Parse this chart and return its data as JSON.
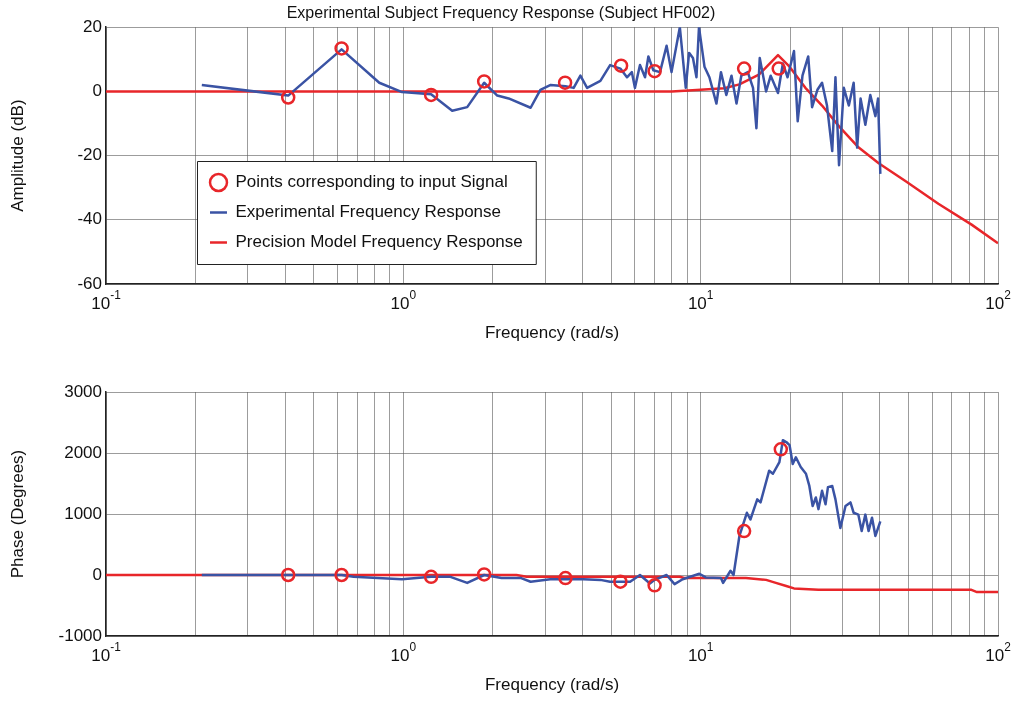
{
  "chart_data": [
    {
      "type": "line",
      "title": "Experimental Subject Frequency Response (Subject HF002)",
      "xlabel": "Frequency (rad/s)",
      "ylabel": "Amplitude (dB)",
      "log": "x",
      "grid": true,
      "legend": "bottom left",
      "xlim": [
        0.1,
        100
      ],
      "ylim": [
        -60,
        20
      ],
      "yticks": [
        -60,
        -40,
        -20,
        0,
        20
      ],
      "xticks": [
        {
          "value": 0.1,
          "label": "10$^{-1}$"
        },
        {
          "value": 0.2,
          "label": null
        },
        {
          "value": 0.3,
          "label": null
        },
        {
          "value": 0.4,
          "label": null
        },
        {
          "value": 0.5,
          "label": null
        },
        {
          "value": 0.6,
          "label": null
        },
        {
          "value": 0.7,
          "label": null
        },
        {
          "value": 0.8,
          "label": null
        },
        {
          "value": 0.9,
          "label": null
        },
        {
          "value": 1,
          "label": "10$^{0}$"
        },
        {
          "value": 2,
          "label": null
        },
        {
          "value": 3,
          "label": null
        },
        {
          "value": 4,
          "label": null
        },
        {
          "value": 5,
          "label": null
        },
        {
          "value": 6,
          "label": null
        },
        {
          "value": 7,
          "label": null
        },
        {
          "value": 8,
          "label": null
        },
        {
          "value": 9,
          "label": null
        },
        {
          "value": 10,
          "label": "10$^{1}$"
        },
        {
          "value": 20,
          "label": null
        },
        {
          "value": 30,
          "label": null
        },
        {
          "value": 40,
          "label": null
        },
        {
          "value": 50,
          "label": null
        },
        {
          "value": 60,
          "label": null
        },
        {
          "value": 70,
          "label": null
        },
        {
          "value": 80,
          "label": null
        },
        {
          "value": 90,
          "label": null
        },
        {
          "value": 100,
          "label": "10$^{2}$"
        }
      ],
      "series": [
        {
          "name": "Points corresponding to input Signal",
          "type": "scatter",
          "marker": "circle",
          "color": "#e8262a",
          "x": [
            0.41,
            0.62,
            1.24,
            1.87,
            3.5,
            5.4,
            7.0,
            14.0,
            18.3
          ],
          "values": [
            -1.9,
            13.4,
            -1.1,
            3.1,
            2.7,
            8.0,
            6.3,
            7.1,
            7.1
          ]
        },
        {
          "name": "Experimental Frequency Response",
          "marker": "none",
          "color": "#3a53a4",
          "x": [
            0.21,
            0.41,
            0.62,
            0.83,
            0.99,
            1.24,
            1.46,
            1.64,
            1.87,
            2.07,
            2.26,
            2.68,
            2.89,
            3.13,
            3.51,
            3.74,
            3.94,
            4.15,
            4.6,
            4.96,
            5.37,
            5.65,
            5.87,
            6.01,
            6.25,
            6.5,
            6.67,
            6.93,
            7.3,
            7.68,
            7.98,
            8.51,
            8.91,
            9.14,
            9.42,
            9.68,
            9.87,
            10.3,
            10.7,
            11.3,
            11.7,
            12.2,
            12.7,
            13.2,
            13.7,
            14.4,
            15.0,
            15.4,
            15.8,
            16.6,
            17.2,
            18.2,
            18.9,
            19.6,
            20.6,
            21.2,
            22.0,
            23.0,
            23.7,
            24.7,
            25.6,
            26.6,
            27.7,
            28.4,
            29.2,
            30.3,
            31.5,
            32.7,
            33.6,
            34.5,
            35.8,
            37.2,
            38.7,
            39.5,
            40.2
          ],
          "values": [
            2.0,
            -1.3,
            13.1,
            2.7,
            -0.2,
            -0.9,
            -6.0,
            -4.9,
            2.7,
            -1.3,
            -2.2,
            -5.1,
            0.5,
            2.0,
            1.6,
            1.1,
            4.9,
            1.1,
            3.3,
            8.2,
            7.1,
            4.4,
            6.0,
            1.1,
            8.2,
            4.4,
            10.9,
            6.6,
            6.0,
            14.2,
            6.0,
            20,
            1.1,
            12.0,
            10.4,
            4.4,
            20,
            7.7,
            4.4,
            -3.8,
            6.0,
            -1.1,
            4.9,
            -3.8,
            4.9,
            6.0,
            1.1,
            -11.5,
            10.4,
            0,
            4.9,
            -0.5,
            8.7,
            4.4,
            12.6,
            -9.3,
            4.9,
            10.9,
            -4.9,
            0.5,
            2.7,
            -4.4,
            -18.6,
            4.4,
            -23.0,
            1.1,
            -4.4,
            2.7,
            -17.5,
            -2.2,
            -10.4,
            -1.1,
            -7.7,
            -2.2,
            -25.7
          ]
        },
        {
          "name": "Precision Model Frequency Response",
          "marker": "none",
          "color": "#e8262a",
          "x": [
            0.1,
            8,
            10,
            12,
            13.5,
            15.7,
            18.2,
            19.9,
            22.5,
            25.6,
            29.2,
            34,
            39.7,
            48.8,
            63,
            81.5,
            100
          ],
          "values": [
            0,
            0,
            0.5,
            1,
            2.2,
            5.2,
            11.3,
            7.7,
            1.1,
            -4.4,
            -10.9,
            -17.5,
            -22.4,
            -27.9,
            -35,
            -41.5,
            -47.3
          ]
        }
      ]
    },
    {
      "type": "line",
      "xlabel": "Frequency (rad/s)",
      "ylabel": "Phase (Degrees)",
      "log": "x",
      "grid": true,
      "xlim": [
        0.1,
        100
      ],
      "ylim": [
        -1000,
        3000
      ],
      "yticks": [
        -1000,
        0,
        1000,
        2000,
        3000
      ],
      "xticks": [
        {
          "value": 0.1,
          "label": "10$^{-1}$"
        },
        {
          "value": 0.2,
          "label": null
        },
        {
          "value": 0.3,
          "label": null
        },
        {
          "value": 0.4,
          "label": null
        },
        {
          "value": 0.5,
          "label": null
        },
        {
          "value": 0.6,
          "label": null
        },
        {
          "value": 0.7,
          "label": null
        },
        {
          "value": 0.8,
          "label": null
        },
        {
          "value": 0.9,
          "label": null
        },
        {
          "value": 1,
          "label": "10$^{0}$"
        },
        {
          "value": 2,
          "label": null
        },
        {
          "value": 3,
          "label": null
        },
        {
          "value": 4,
          "label": null
        },
        {
          "value": 5,
          "label": null
        },
        {
          "value": 6,
          "label": null
        },
        {
          "value": 7,
          "label": null
        },
        {
          "value": 8,
          "label": null
        },
        {
          "value": 9,
          "label": null
        },
        {
          "value": 10,
          "label": "10$^{1}$"
        },
        {
          "value": 20,
          "label": null
        },
        {
          "value": 30,
          "label": null
        },
        {
          "value": 40,
          "label": null
        },
        {
          "value": 50,
          "label": null
        },
        {
          "value": 60,
          "label": null
        },
        {
          "value": 70,
          "label": null
        },
        {
          "value": 80,
          "label": null
        },
        {
          "value": 90,
          "label": null
        },
        {
          "value": 100,
          "label": "10$^{2}$"
        }
      ],
      "series": [
        {
          "marker": "none",
          "color": "#3a53a4",
          "x": [
            0.21,
            0.41,
            0.62,
            0.68,
            0.99,
            1.24,
            1.44,
            1.64,
            1.87,
            2.14,
            2.49,
            2.68,
            3.12,
            3.51,
            4.04,
            4.6,
            4.96,
            5.37,
            5.79,
            6.25,
            6.75,
            7.0,
            7.68,
            8.17,
            8.7,
            9.9,
            10.4,
            11.7,
            11.9,
            12.6,
            12.9,
            13.5,
            14.3,
            14.7,
            15.5,
            15.9,
            17.0,
            17.5,
            18.4,
            18.9,
            19.4,
            19.9,
            20.4,
            20.9,
            21.7,
            22.6,
            23.2,
            23.8,
            24.4,
            24.9,
            25.6,
            26.3,
            26.8,
            27.7,
            28.4,
            29.5,
            30.7,
            31.9,
            32.7,
            33.9,
            34.8,
            35.8,
            36.7,
            37.7,
            38.7,
            40.2
          ],
          "values": [
            0,
            0,
            0,
            -30,
            -70,
            -30,
            -30,
            -130,
            0,
            -50,
            -50,
            -110,
            -70,
            -70,
            -70,
            -80,
            -110,
            -110,
            -110,
            0,
            -140,
            -80,
            0,
            -150,
            -70,
            20,
            -40,
            -50,
            -130,
            70,
            0,
            640,
            1020,
            910,
            1240,
            1190,
            1710,
            1660,
            1850,
            2210,
            2180,
            2130,
            1820,
            1930,
            1770,
            1660,
            1460,
            1130,
            1270,
            1080,
            1380,
            1160,
            1440,
            1460,
            1240,
            770,
            1130,
            1190,
            1020,
            990,
            720,
            990,
            720,
            940,
            640,
            880
          ]
        },
        {
          "marker": "none",
          "color": "#e8262a",
          "x": [
            0.1,
            2.4,
            2.6,
            8.5,
            8.8,
            14.2,
            16.6,
            17.9,
            19.4,
            20.6,
            24.9,
            81,
            85,
            100
          ],
          "values": [
            0,
            0,
            -30,
            -30,
            -50,
            -50,
            -80,
            -130,
            -180,
            -220,
            -240,
            -240,
            -280,
            -280
          ]
        },
        {
          "type": "scatter",
          "marker": "circle",
          "color": "#e8262a",
          "x": [
            0.41,
            0.62,
            1.24,
            1.87,
            3.51,
            5.37,
            7.0,
            14.0,
            18.6
          ],
          "values": [
            0,
            0,
            -30,
            10,
            -50,
            -110,
            -170,
            720,
            2060
          ]
        }
      ]
    }
  ]
}
